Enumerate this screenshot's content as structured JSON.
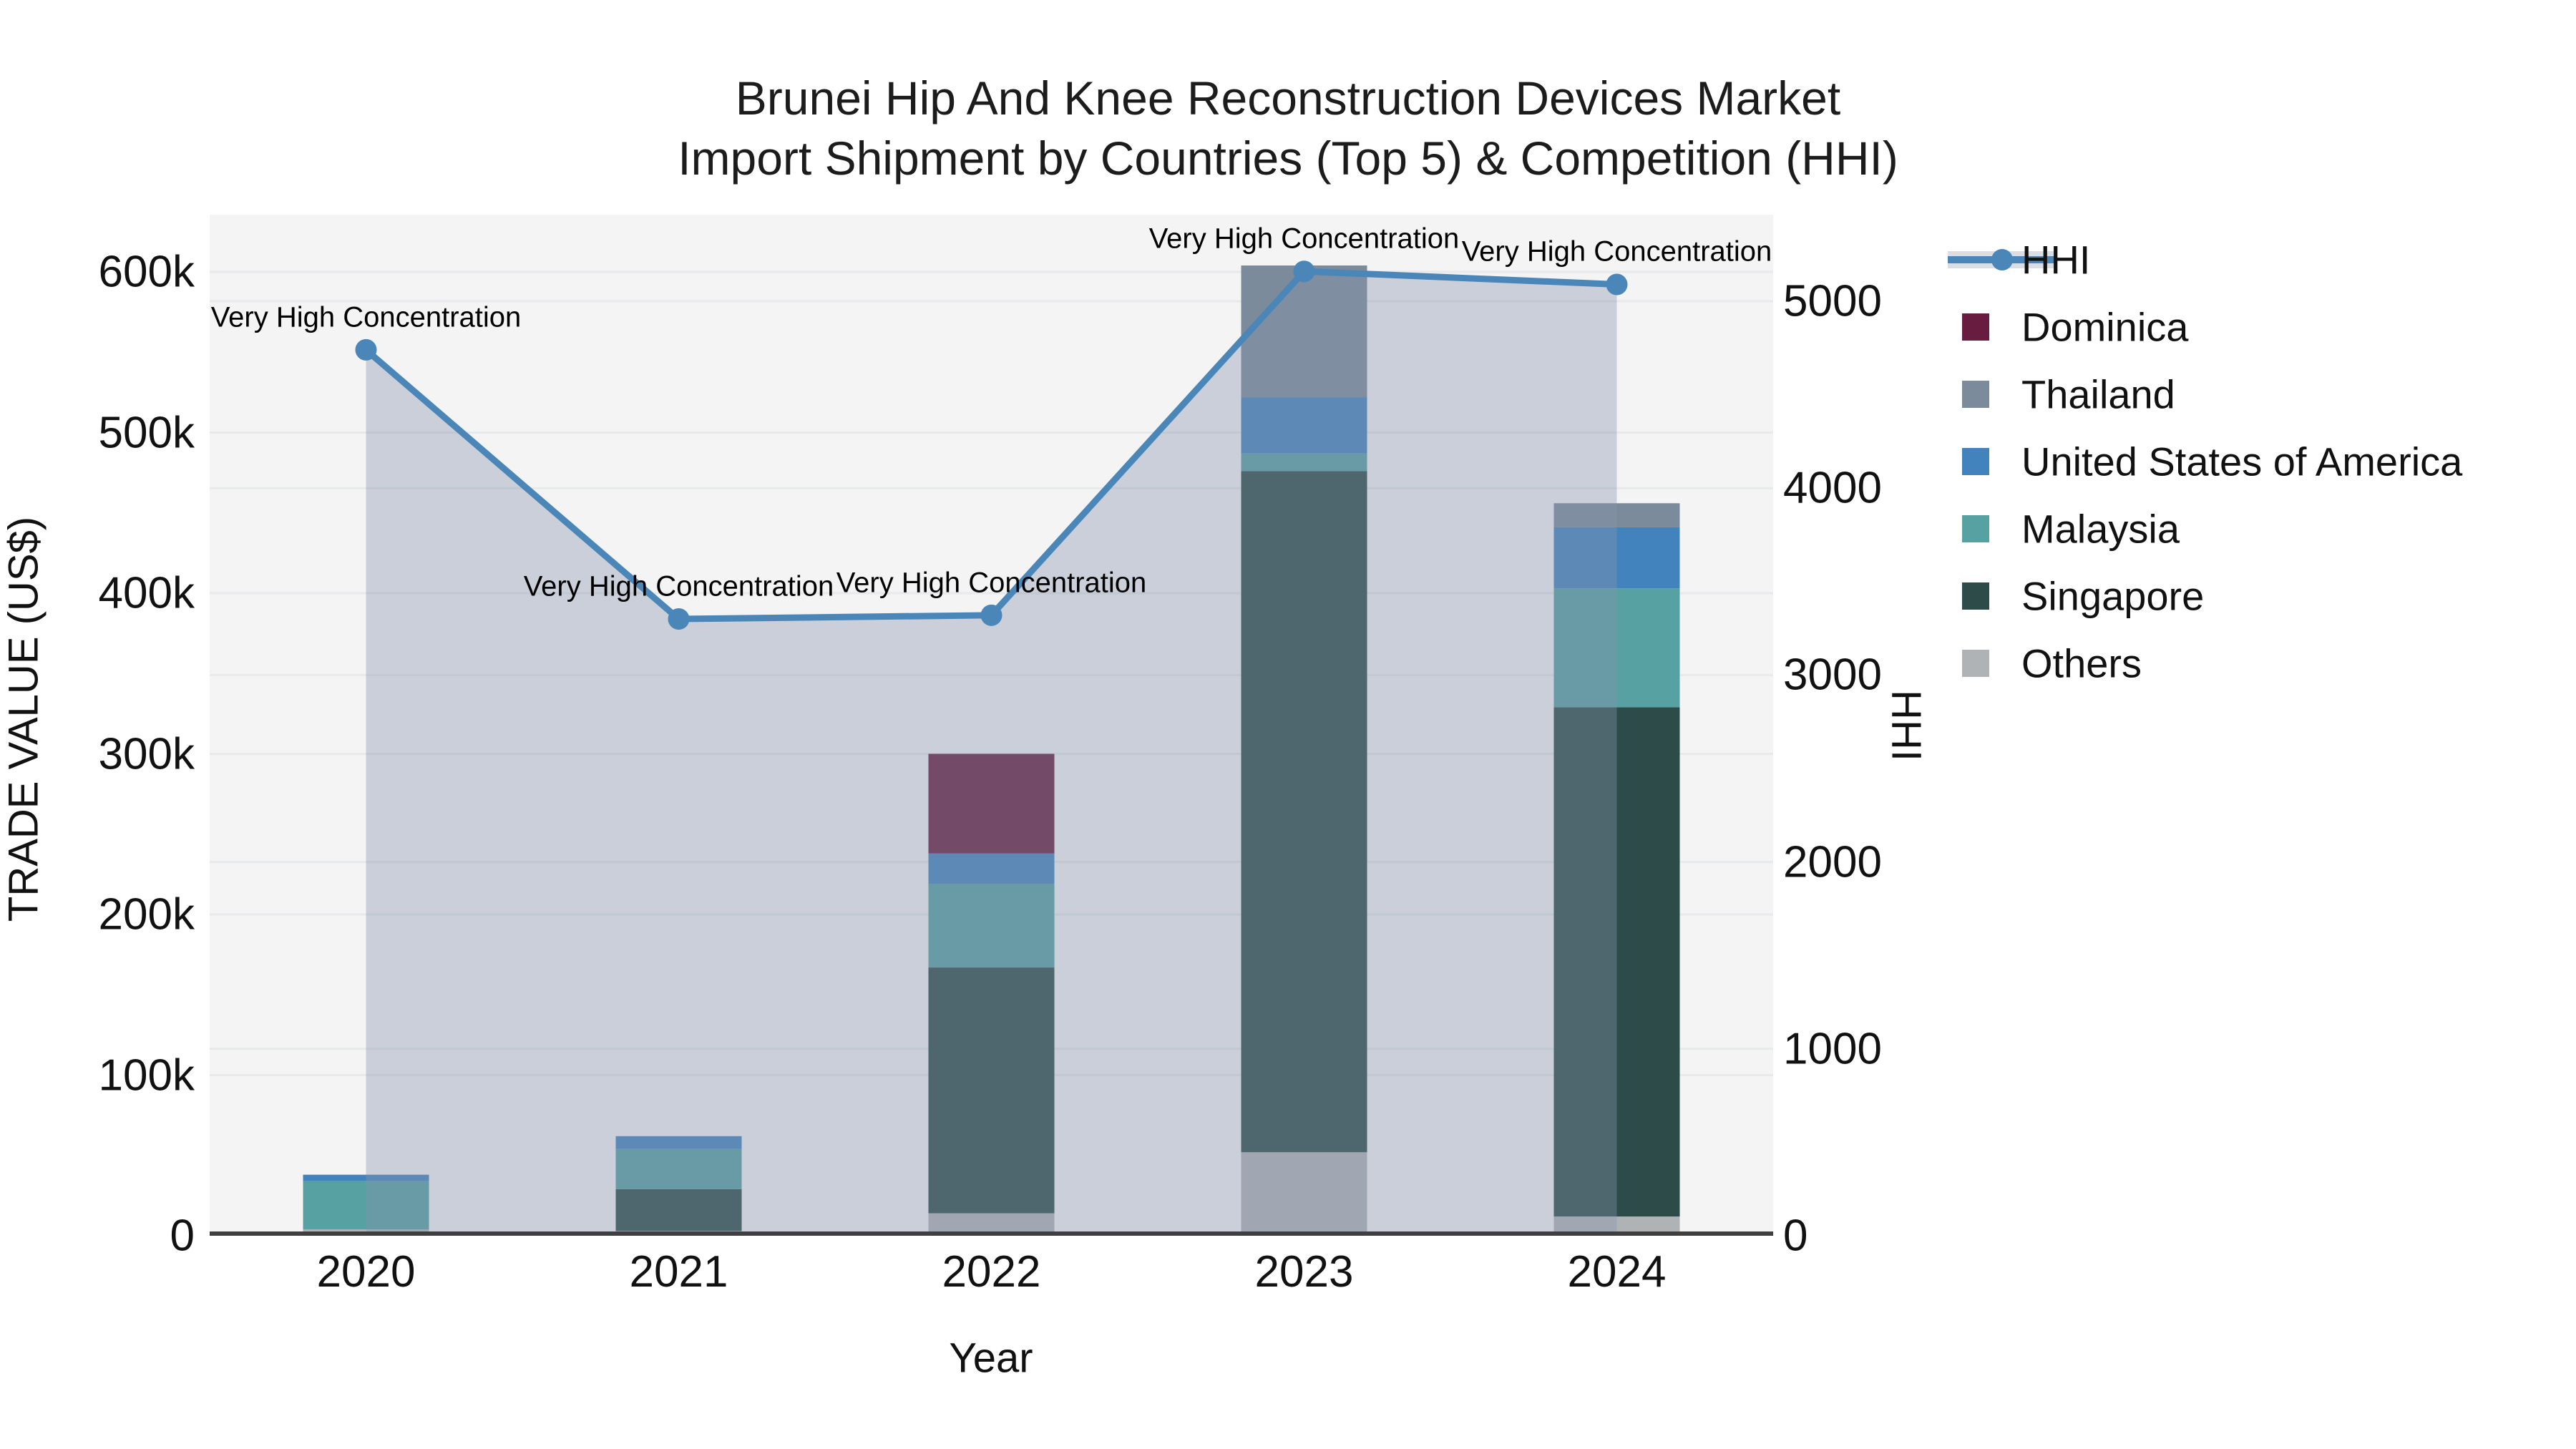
{
  "figure": {
    "title_line1": "Brunei Hip And Knee Reconstruction Devices Market",
    "title_line2": "Import Shipment by Countries (Top 5) & Competition (HHI)"
  },
  "chart_data": {
    "type": "bar+line",
    "x": [
      "2020",
      "2021",
      "2022",
      "2023",
      "2024"
    ],
    "xlabel": "Year",
    "ylabel_left": "TRADE VALUE (US$)",
    "ylabel_right": "HHI",
    "y_left_ticks": [
      {
        "value": 0,
        "label": "0"
      },
      {
        "value": 100000,
        "label": "100k"
      },
      {
        "value": 200000,
        "label": "200k"
      },
      {
        "value": 300000,
        "label": "300k"
      },
      {
        "value": 400000,
        "label": "400k"
      },
      {
        "value": 500000,
        "label": "500k"
      },
      {
        "value": 600000,
        "label": "600k"
      }
    ],
    "y_left_max": 600000,
    "y_right_ticks": [
      {
        "value": 0,
        "label": "0"
      },
      {
        "value": 1000,
        "label": "1000"
      },
      {
        "value": 2000,
        "label": "2000"
      },
      {
        "value": 3000,
        "label": "3000"
      },
      {
        "value": 4000,
        "label": "4000"
      },
      {
        "value": 5000,
        "label": "5000"
      }
    ],
    "y_right_max": 5000,
    "bar_series": [
      {
        "name": "Others",
        "color": "#b0b3b6",
        "values": [
          4000,
          3000,
          14000,
          52000,
          12000
        ]
      },
      {
        "name": "Singapore",
        "color": "#2d4b49",
        "values": [
          0,
          26000,
          153000,
          424000,
          317000
        ]
      },
      {
        "name": "Malaysia",
        "color": "#58a1a3",
        "values": [
          30000,
          25000,
          52000,
          11000,
          74000
        ]
      },
      {
        "name": "United States of America",
        "color": "#4383bd",
        "values": [
          4000,
          8000,
          19000,
          35000,
          38000
        ]
      },
      {
        "name": "Thailand",
        "color": "#7b8b9b",
        "values": [
          0,
          0,
          0,
          82000,
          15000
        ]
      },
      {
        "name": "Dominica",
        "color": "#681d40",
        "values": [
          0,
          0,
          62000,
          0,
          0
        ]
      }
    ],
    "line_series": {
      "name": "HHI",
      "color": "#4a86b8",
      "fill_color": "rgba(134,147,171,0.38)",
      "values": [
        4740,
        3300,
        3320,
        5160,
        5090
      ]
    },
    "annotations": [
      {
        "x_index": 0,
        "text": "Very High Concentration"
      },
      {
        "x_index": 1,
        "text": "Very High Concentration"
      },
      {
        "x_index": 2,
        "text": "Very High Concentration"
      },
      {
        "x_index": 3,
        "text": "Very High Concentration"
      },
      {
        "x_index": 4,
        "text": "Very High Concentration"
      }
    ],
    "legend": [
      {
        "name": "HHI",
        "color": "#4a86b8",
        "kind": "line"
      },
      {
        "name": "Dominica",
        "color": "#681d40",
        "kind": "square"
      },
      {
        "name": "Thailand",
        "color": "#7b8b9b",
        "kind": "square"
      },
      {
        "name": "United States of America",
        "color": "#4383bd",
        "kind": "square"
      },
      {
        "name": "Malaysia",
        "color": "#58a1a3",
        "kind": "square"
      },
      {
        "name": "Singapore",
        "color": "#2d4b49",
        "kind": "square"
      },
      {
        "name": "Others",
        "color": "#b0b3b6",
        "kind": "square"
      }
    ],
    "style": {
      "plot_bg": "#f4f4f5",
      "grid_color": "#e7e9eb",
      "axis_line_color": "#3f3f3f"
    }
  }
}
